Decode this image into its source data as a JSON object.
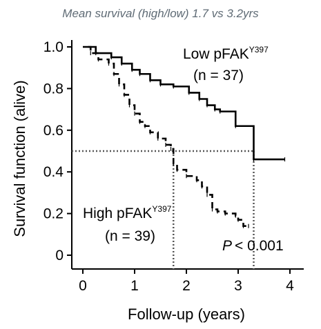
{
  "subtitle": "Mean survival (high/low) 1.7 vs 3.2yrs",
  "chart_data": {
    "type": "line",
    "chart_subtype": "kaplan-meier",
    "xlabel": "Follow-up (years)",
    "ylabel": "Survival function (alive)",
    "xlim": [
      0,
      4.2
    ],
    "ylim": [
      0,
      1.05
    ],
    "x_ticks": [
      0,
      1,
      2,
      3,
      4
    ],
    "x_tick_labels": [
      "0",
      "1",
      "2",
      "3",
      "4"
    ],
    "y_ticks": [
      0,
      0.2,
      0.4,
      0.6,
      0.8,
      1.0
    ],
    "y_tick_labels": [
      "0",
      "0.2",
      "0.4",
      "0.6",
      "0.8",
      "1.0"
    ],
    "grid": false,
    "median_line": {
      "y": 0.5,
      "x_end": 3.3,
      "x_marks": [
        1.75,
        3.3
      ]
    },
    "series": [
      {
        "label_prefix": "Low pFAK",
        "label_sup": "Y397",
        "n_label": "(n = 37)",
        "style": "solid",
        "color": "#000000",
        "steps": [
          [
            0,
            1.0
          ],
          [
            0.25,
            0.97
          ],
          [
            0.55,
            0.95
          ],
          [
            0.75,
            0.92
          ],
          [
            0.95,
            0.89
          ],
          [
            1.1,
            0.87
          ],
          [
            1.3,
            0.84
          ],
          [
            1.5,
            0.82
          ],
          [
            1.75,
            0.81
          ],
          [
            2.05,
            0.78
          ],
          [
            2.25,
            0.75
          ],
          [
            2.4,
            0.72
          ],
          [
            2.55,
            0.7
          ],
          [
            2.65,
            0.69
          ],
          [
            2.95,
            0.62
          ],
          [
            3.3,
            0.46
          ],
          [
            3.9,
            0.46
          ]
        ]
      },
      {
        "label_prefix": "High pFAK",
        "label_sup": "Y397",
        "n_label": "(n = 39)",
        "style": "dashed",
        "color": "#000000",
        "steps": [
          [
            0.1,
            1.0
          ],
          [
            0.15,
            0.97
          ],
          [
            0.3,
            0.94
          ],
          [
            0.5,
            0.92
          ],
          [
            0.6,
            0.87
          ],
          [
            0.7,
            0.82
          ],
          [
            0.8,
            0.77
          ],
          [
            0.9,
            0.72
          ],
          [
            1.0,
            0.68
          ],
          [
            1.1,
            0.64
          ],
          [
            1.2,
            0.62
          ],
          [
            1.3,
            0.59
          ],
          [
            1.45,
            0.56
          ],
          [
            1.6,
            0.53
          ],
          [
            1.7,
            0.51
          ],
          [
            1.75,
            0.44
          ],
          [
            1.82,
            0.41
          ],
          [
            2.0,
            0.38
          ],
          [
            2.2,
            0.36
          ],
          [
            2.3,
            0.33
          ],
          [
            2.4,
            0.29
          ],
          [
            2.5,
            0.22
          ],
          [
            2.6,
            0.21
          ],
          [
            2.75,
            0.2
          ],
          [
            2.95,
            0.19
          ],
          [
            3.0,
            0.17
          ],
          [
            3.1,
            0.14
          ],
          [
            3.2,
            0.14
          ]
        ]
      }
    ],
    "annotations": {
      "p_italic": "P",
      "p_rest": "< 0.001"
    }
  }
}
